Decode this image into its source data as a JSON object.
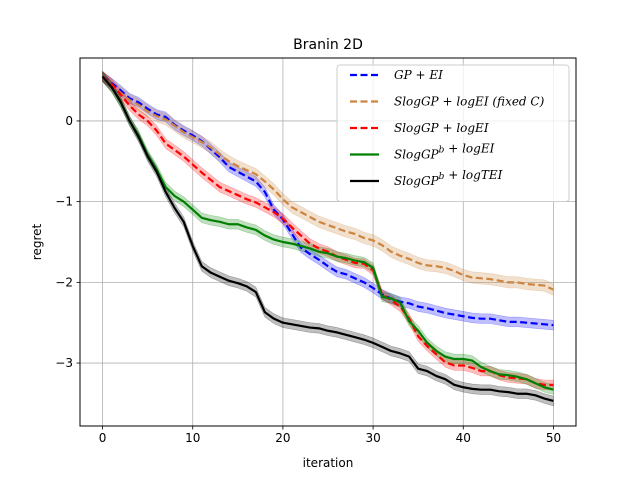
{
  "chart_data": {
    "type": "line",
    "title": "Branin 2D",
    "xlabel": "iteration",
    "ylabel": "regret",
    "xlim": [
      -2.5,
      52.5
    ],
    "ylim": [
      -3.78,
      0.78
    ],
    "xticks": [
      0,
      10,
      20,
      30,
      40,
      50
    ],
    "yticks": [
      0,
      -1,
      -2,
      -3
    ],
    "xtick_labels": [
      "0",
      "10",
      "20",
      "30",
      "40",
      "50"
    ],
    "ytick_labels": [
      "0",
      "−1",
      "−2",
      "−3"
    ],
    "grid": true,
    "legend_position": "top-right",
    "series": [
      {
        "name": "GP + EI",
        "legend_parts": [
          [
            "GP",
            ""
          ],
          [
            " + ",
            ""
          ],
          [
            "EI",
            ""
          ]
        ],
        "color": "#0000ff",
        "dash": true,
        "band": 0.06,
        "x": [
          0,
          1,
          2,
          3,
          4,
          5,
          6,
          7,
          8,
          9,
          10,
          11,
          12,
          13,
          14,
          15,
          16,
          17,
          18,
          19,
          20,
          21,
          22,
          23,
          24,
          25,
          26,
          27,
          28,
          29,
          30,
          31,
          32,
          33,
          34,
          35,
          36,
          37,
          38,
          39,
          40,
          41,
          42,
          43,
          44,
          45,
          46,
          47,
          48,
          49,
          50
        ],
        "y": [
          0.55,
          0.47,
          0.38,
          0.28,
          0.23,
          0.15,
          0.08,
          0.05,
          -0.05,
          -0.12,
          -0.18,
          -0.25,
          -0.35,
          -0.45,
          -0.57,
          -0.63,
          -0.69,
          -0.75,
          -0.88,
          -1.1,
          -1.22,
          -1.4,
          -1.57,
          -1.65,
          -1.72,
          -1.8,
          -1.87,
          -1.9,
          -1.95,
          -2.0,
          -2.07,
          -2.15,
          -2.2,
          -2.24,
          -2.26,
          -2.3,
          -2.32,
          -2.35,
          -2.38,
          -2.4,
          -2.42,
          -2.44,
          -2.45,
          -2.45,
          -2.47,
          -2.49,
          -2.49,
          -2.5,
          -2.51,
          -2.52,
          -2.53
        ]
      },
      {
        "name": "SlogGP + logEI  (fixed C)",
        "legend_parts": [
          [
            "SlogGP",
            ""
          ],
          [
            " + ",
            ""
          ],
          [
            "logEI",
            ""
          ],
          [
            "  (fixed C)",
            ""
          ]
        ],
        "color": "#cd853f",
        "dash": true,
        "band": 0.07,
        "x": [
          0,
          1,
          2,
          3,
          4,
          5,
          6,
          7,
          8,
          9,
          10,
          11,
          12,
          13,
          14,
          15,
          16,
          17,
          18,
          19,
          20,
          21,
          22,
          23,
          24,
          25,
          26,
          27,
          28,
          29,
          30,
          31,
          32,
          33,
          34,
          35,
          36,
          37,
          38,
          39,
          40,
          41,
          42,
          43,
          44,
          45,
          46,
          47,
          48,
          49,
          50
        ],
        "y": [
          0.55,
          0.45,
          0.35,
          0.26,
          0.2,
          0.12,
          0.06,
          0.02,
          -0.06,
          -0.14,
          -0.2,
          -0.26,
          -0.33,
          -0.42,
          -0.5,
          -0.56,
          -0.61,
          -0.66,
          -0.75,
          -0.85,
          -0.97,
          -1.07,
          -1.13,
          -1.19,
          -1.25,
          -1.29,
          -1.33,
          -1.37,
          -1.4,
          -1.45,
          -1.48,
          -1.54,
          -1.62,
          -1.67,
          -1.71,
          -1.76,
          -1.79,
          -1.8,
          -1.82,
          -1.86,
          -1.91,
          -1.94,
          -1.95,
          -1.96,
          -1.98,
          -2.0,
          -2.0,
          -2.02,
          -2.03,
          -2.04,
          -2.09
        ]
      },
      {
        "name": "SlogGP + logEI",
        "legend_parts": [
          [
            "SlogGP",
            ""
          ],
          [
            " + ",
            ""
          ],
          [
            "logEI",
            ""
          ]
        ],
        "color": "#ff0000",
        "dash": true,
        "band": 0.06,
        "x": [
          0,
          1,
          2,
          3,
          4,
          5,
          6,
          7,
          8,
          9,
          10,
          11,
          12,
          13,
          14,
          15,
          16,
          17,
          18,
          19,
          20,
          21,
          22,
          23,
          24,
          25,
          26,
          27,
          28,
          29,
          30,
          31,
          32,
          33,
          34,
          35,
          36,
          37,
          38,
          39,
          40,
          41,
          42,
          43,
          44,
          45,
          46,
          47,
          48,
          49,
          50
        ],
        "y": [
          0.55,
          0.46,
          0.33,
          0.19,
          0.08,
          0.0,
          -0.12,
          -0.28,
          -0.36,
          -0.44,
          -0.54,
          -0.64,
          -0.73,
          -0.82,
          -0.87,
          -0.92,
          -0.97,
          -1.01,
          -1.07,
          -1.13,
          -1.21,
          -1.32,
          -1.42,
          -1.52,
          -1.58,
          -1.62,
          -1.68,
          -1.72,
          -1.76,
          -1.77,
          -1.85,
          -2.15,
          -2.22,
          -2.3,
          -2.45,
          -2.67,
          -2.79,
          -2.89,
          -2.99,
          -3.03,
          -3.03,
          -3.06,
          -3.1,
          -3.1,
          -3.15,
          -3.18,
          -3.19,
          -3.2,
          -3.25,
          -3.27,
          -3.27
        ]
      },
      {
        "name": "SlogGP^b + logEI",
        "legend_parts": [
          [
            "SlogGP",
            "b"
          ],
          [
            " + ",
            ""
          ],
          [
            "logEI",
            ""
          ]
        ],
        "color": "#008000",
        "dash": false,
        "band": 0.06,
        "x": [
          0,
          1,
          2,
          3,
          4,
          5,
          6,
          7,
          8,
          9,
          10,
          11,
          12,
          13,
          14,
          15,
          16,
          17,
          18,
          19,
          20,
          21,
          22,
          23,
          24,
          25,
          26,
          27,
          28,
          29,
          30,
          31,
          32,
          33,
          34,
          35,
          36,
          37,
          38,
          39,
          40,
          41,
          42,
          43,
          44,
          45,
          46,
          47,
          48,
          49,
          50
        ],
        "y": [
          0.55,
          0.42,
          0.23,
          0.0,
          -0.18,
          -0.42,
          -0.6,
          -0.82,
          -0.93,
          -1.0,
          -1.1,
          -1.2,
          -1.23,
          -1.25,
          -1.28,
          -1.28,
          -1.32,
          -1.35,
          -1.42,
          -1.47,
          -1.5,
          -1.52,
          -1.55,
          -1.58,
          -1.62,
          -1.64,
          -1.68,
          -1.7,
          -1.73,
          -1.75,
          -1.82,
          -2.18,
          -2.2,
          -2.25,
          -2.48,
          -2.6,
          -2.75,
          -2.85,
          -2.92,
          -2.95,
          -2.95,
          -2.97,
          -3.05,
          -3.1,
          -3.14,
          -3.15,
          -3.17,
          -3.2,
          -3.25,
          -3.3,
          -3.33
        ]
      },
      {
        "name": "SlogGP^b + logTEI",
        "legend_parts": [
          [
            "SlogGP",
            "b"
          ],
          [
            " + ",
            ""
          ],
          [
            "logTEI",
            ""
          ]
        ],
        "color": "#000000",
        "dash": false,
        "band": 0.06,
        "x": [
          0,
          1,
          2,
          3,
          4,
          5,
          6,
          7,
          8,
          9,
          10,
          11,
          12,
          13,
          14,
          15,
          16,
          17,
          18,
          19,
          20,
          21,
          22,
          23,
          24,
          25,
          26,
          27,
          28,
          29,
          30,
          31,
          32,
          33,
          34,
          35,
          36,
          37,
          38,
          39,
          40,
          41,
          42,
          43,
          44,
          45,
          46,
          47,
          48,
          49,
          50
        ],
        "y": [
          0.55,
          0.42,
          0.24,
          0.0,
          -0.2,
          -0.44,
          -0.63,
          -0.88,
          -1.08,
          -1.25,
          -1.55,
          -1.8,
          -1.88,
          -1.93,
          -1.98,
          -2.01,
          -2.05,
          -2.12,
          -2.37,
          -2.45,
          -2.5,
          -2.52,
          -2.54,
          -2.56,
          -2.57,
          -2.6,
          -2.62,
          -2.65,
          -2.68,
          -2.71,
          -2.75,
          -2.8,
          -2.85,
          -2.88,
          -2.92,
          -3.07,
          -3.1,
          -3.16,
          -3.2,
          -3.27,
          -3.3,
          -3.32,
          -3.33,
          -3.33,
          -3.35,
          -3.36,
          -3.38,
          -3.38,
          -3.4,
          -3.44,
          -3.47
        ]
      }
    ]
  }
}
